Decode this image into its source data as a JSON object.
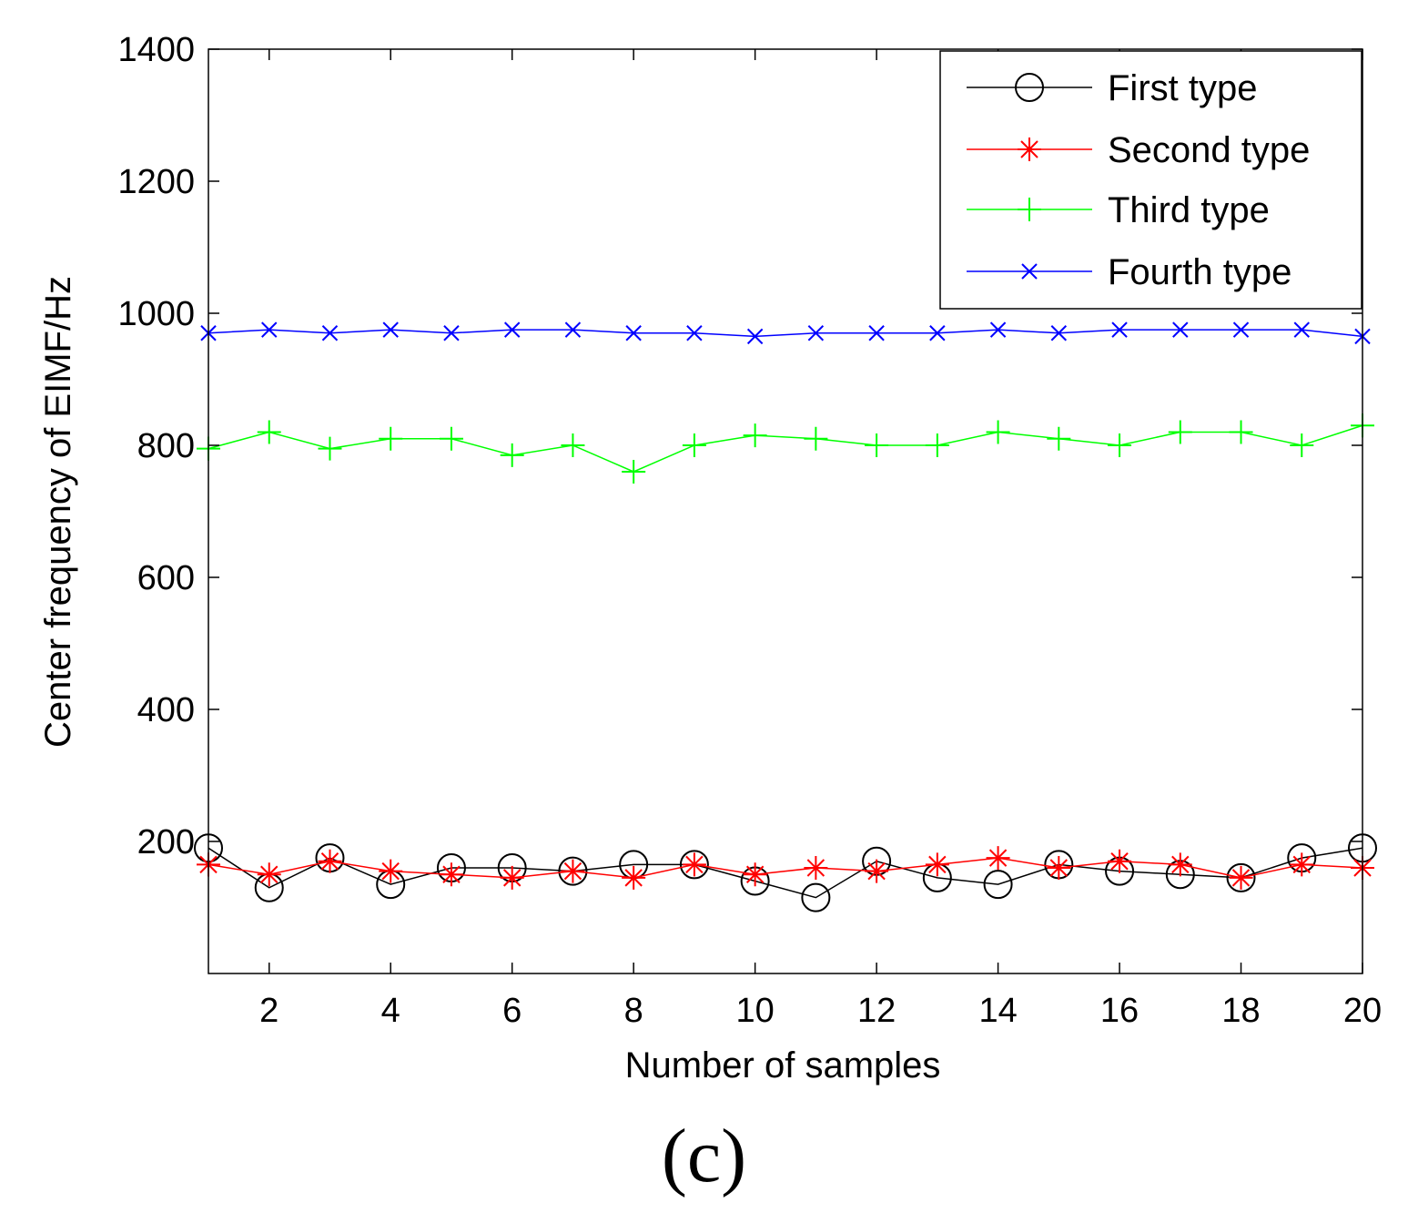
{
  "chart_data": {
    "type": "line",
    "title": "",
    "xlabel": "Number of samples",
    "ylabel": "Center frequency of EIMF/Hz",
    "xlim": [
      1,
      20
    ],
    "ylim": [
      0,
      1400
    ],
    "x_ticks": [
      2,
      4,
      6,
      8,
      10,
      12,
      14,
      16,
      18,
      20
    ],
    "y_ticks": [
      200,
      400,
      600,
      800,
      1000,
      1200,
      1400
    ],
    "grid": false,
    "legend_position": "top-right",
    "x": [
      1,
      2,
      3,
      4,
      5,
      6,
      7,
      8,
      9,
      10,
      11,
      12,
      13,
      14,
      15,
      16,
      17,
      18,
      19,
      20
    ],
    "series": [
      {
        "name": "First type",
        "color": "#000000",
        "marker": "circle",
        "values": [
          190,
          130,
          175,
          135,
          160,
          160,
          155,
          165,
          165,
          140,
          115,
          170,
          145,
          135,
          165,
          155,
          150,
          145,
          175,
          190
        ]
      },
      {
        "name": "Second type",
        "color": "#ff0000",
        "marker": "asterisk",
        "values": [
          165,
          150,
          170,
          155,
          150,
          145,
          155,
          145,
          165,
          150,
          160,
          155,
          165,
          175,
          160,
          170,
          165,
          145,
          165,
          160
        ]
      },
      {
        "name": "Third type",
        "color": "#00ff00",
        "marker": "plus",
        "values": [
          795,
          820,
          795,
          810,
          810,
          785,
          800,
          760,
          800,
          815,
          810,
          800,
          800,
          820,
          810,
          800,
          820,
          820,
          800,
          830
        ]
      },
      {
        "name": "Fourth type",
        "color": "#0000ff",
        "marker": "x",
        "values": [
          970,
          975,
          970,
          975,
          970,
          975,
          975,
          970,
          970,
          965,
          970,
          970,
          970,
          975,
          970,
          975,
          975,
          975,
          975,
          965
        ]
      }
    ]
  },
  "caption": "(c)"
}
